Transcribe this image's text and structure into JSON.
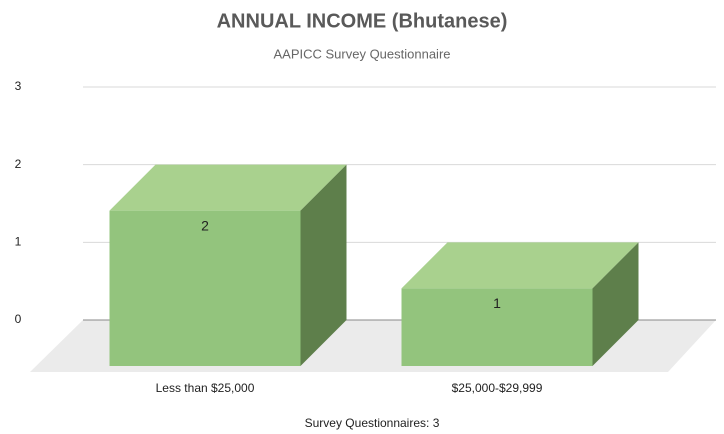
{
  "chart_data": {
    "type": "bar3d",
    "title": "ANNUAL INCOME (Bhutanese)",
    "subtitle": "AAPICC Survey Questionnaire",
    "categories": [
      "Less than $25,000",
      "$25,000-$29,999"
    ],
    "values": [
      2,
      1
    ],
    "color": "#93c47d",
    "ylim": [
      0,
      3
    ],
    "yticks": [
      0,
      1,
      2,
      3
    ],
    "grid": true,
    "x_label": "Survey Questionnaires: 3"
  }
}
